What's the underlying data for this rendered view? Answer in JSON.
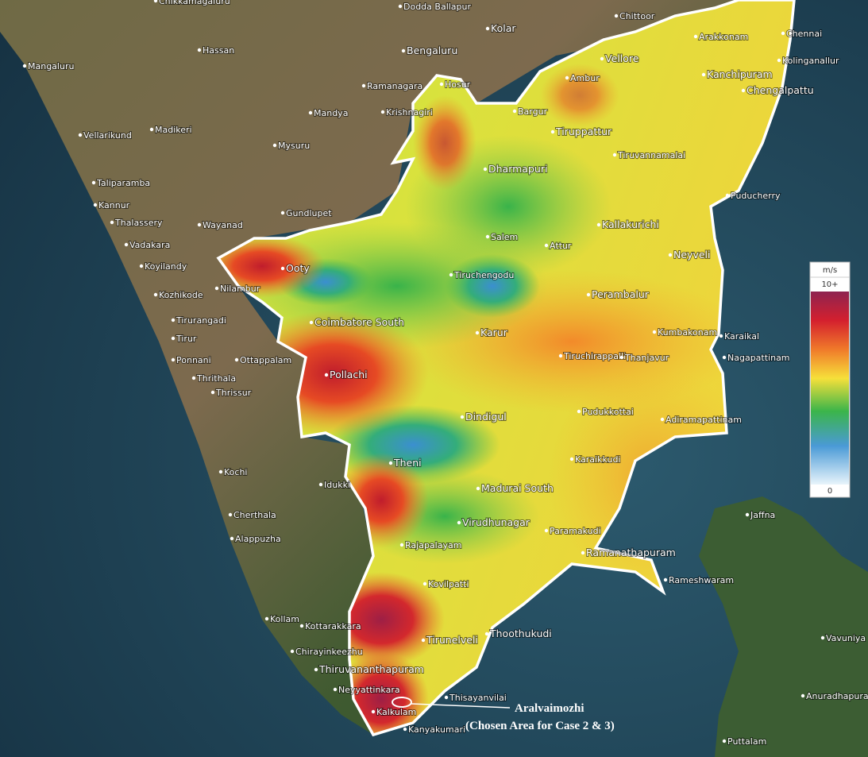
{
  "map": {
    "places": [
      "Chikkamagaluru",
      "Dodda Ballapur",
      "Chittoor",
      "Kolar",
      "Chennai",
      "Arakkonam",
      "Mangaluru",
      "Hassan",
      "Bengaluru",
      "Vellore",
      "Kanchipuram",
      "Kolinganallur",
      "Ramanagara",
      "Hosur",
      "Ambur",
      "Chengalpattu",
      "Madikeri",
      "Mandya",
      "Krishnagiri",
      "Bargur",
      "Tiruppattur",
      "Vellarikund",
      "Mysuru",
      "Tiruvannamalai",
      "Dharmapuri",
      "Taliparamba",
      "Puducherry",
      "Kannur",
      "Gundlupet",
      "Thalassery",
      "Wayanad",
      "Kallakurichi",
      "Vadakara",
      "Salem",
      "Attur",
      "Koyilandy",
      "Neyveli",
      "Ooty",
      "Nilambur",
      "Kozhikode",
      "Tiruchengodu",
      "Perambalur",
      "Tirurangadi",
      "Coimbatore South",
      "Tirur",
      "Karur",
      "Kumbakonam",
      "Karaikal",
      "Ponnani",
      "Ottappalam",
      "Tiruchirappalli",
      "Thanjavur",
      "Nagapattinam",
      "Thrithala",
      "Thrissur",
      "Pollachi",
      "Dindigul",
      "Pudukkottai",
      "Adiramapattinam",
      "Theni",
      "Karaikkudi",
      "Kochi",
      "Idukki",
      "Madurai South",
      "Cherthala",
      "Virudhunagar",
      "Paramakudi",
      "Jaffna",
      "Alappuzha",
      "Rajapalayam",
      "Ramanathapuram",
      "Rameshwaram",
      "Kovilpatti",
      "Kollam",
      "Kottarakkara",
      "Tirunelveli",
      "Thoothukudi",
      "Vavuniya",
      "Chirayinkeezhu",
      "Thiruvananthapuram",
      "Neyyattinkara",
      "Thisayanvilai",
      "Anuradhapura",
      "Kalkulam",
      "Kanyakumari",
      "Puttalam"
    ],
    "legend": {
      "unit": "m/s",
      "max": "10+",
      "min": 0
    },
    "annotation": {
      "title": "Aralvaimozhi",
      "subtitle": "(Chosen Area for Case 2 & 3)"
    }
  }
}
